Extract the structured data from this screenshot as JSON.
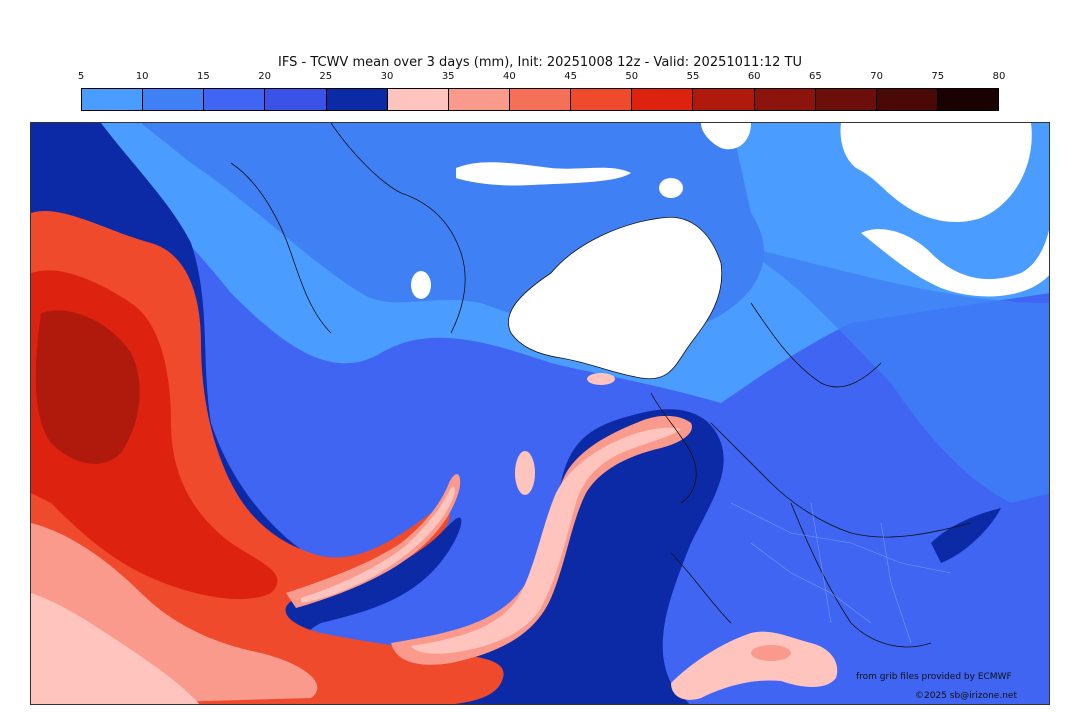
{
  "title": "IFS - TCWV mean over 3 days (mm), Init: 20251008 12z - Valid: 20251011:12 TU",
  "colorbar": {
    "ticks": [
      "5",
      "10",
      "15",
      "20",
      "25",
      "30",
      "35",
      "40",
      "45",
      "50",
      "55",
      "60",
      "65",
      "70",
      "75",
      "80"
    ],
    "colors": [
      "#4a9cff",
      "#3f80f5",
      "#3f65f2",
      "#3a52e8",
      "#0d2aa6",
      "#ffc4bd",
      "#fa9a8c",
      "#f57058",
      "#f04a2d",
      "#dd2310",
      "#b01a0c",
      "#8d140c",
      "#6c0f0b",
      "#4a0807",
      "#1a0202"
    ]
  },
  "credits": {
    "source": "from grib files provided by ECMWF",
    "copyright": "©2025 sb@irizone.net"
  }
}
